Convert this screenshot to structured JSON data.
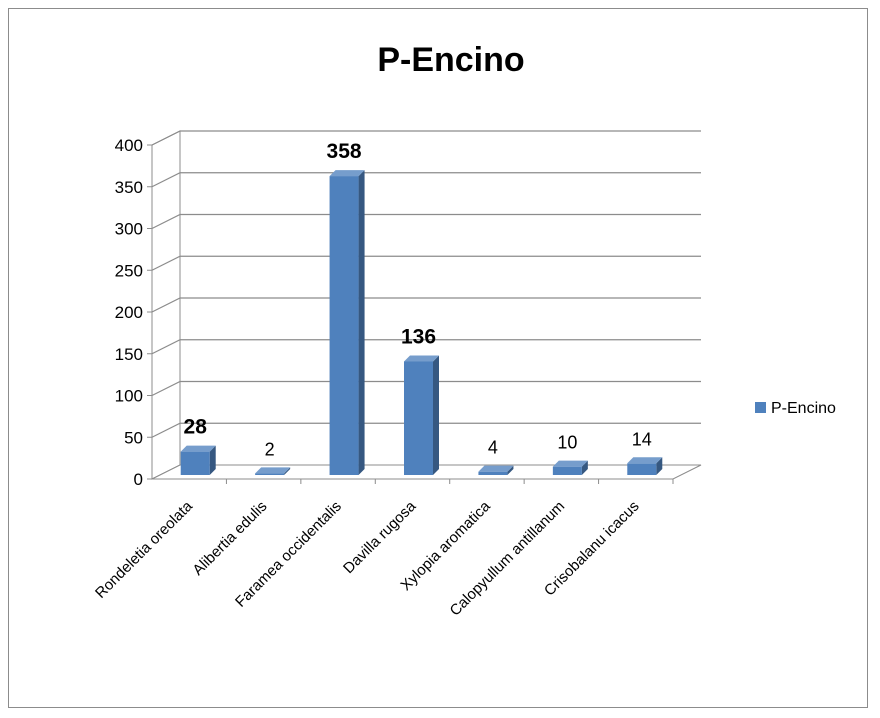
{
  "chart_data": {
    "type": "bar",
    "title": "P-Encino",
    "categories": [
      "Rondeletia oreolata",
      "Alibertia edulis",
      "Faramea occidentalis",
      "Davilla rugosa",
      "Xylopia aromatica",
      "Calopyullum antillanum",
      "Crisobalanu icacus"
    ],
    "series": [
      {
        "name": "P-Encino",
        "values": [
          28,
          2,
          358,
          136,
          4,
          10,
          14
        ],
        "color": "#4f81bd"
      }
    ],
    "data_labels": [
      "28",
      "2",
      "358",
      "136",
      "4",
      "10",
      "14"
    ],
    "bold_labels": [
      true,
      false,
      true,
      true,
      false,
      false,
      false
    ],
    "ylim": [
      0,
      400
    ],
    "yticks": [
      0,
      50,
      100,
      150,
      200,
      250,
      300,
      350,
      400
    ],
    "grid": true,
    "legend_position": "right",
    "style": "3d-column",
    "xlabel": "",
    "ylabel": ""
  }
}
